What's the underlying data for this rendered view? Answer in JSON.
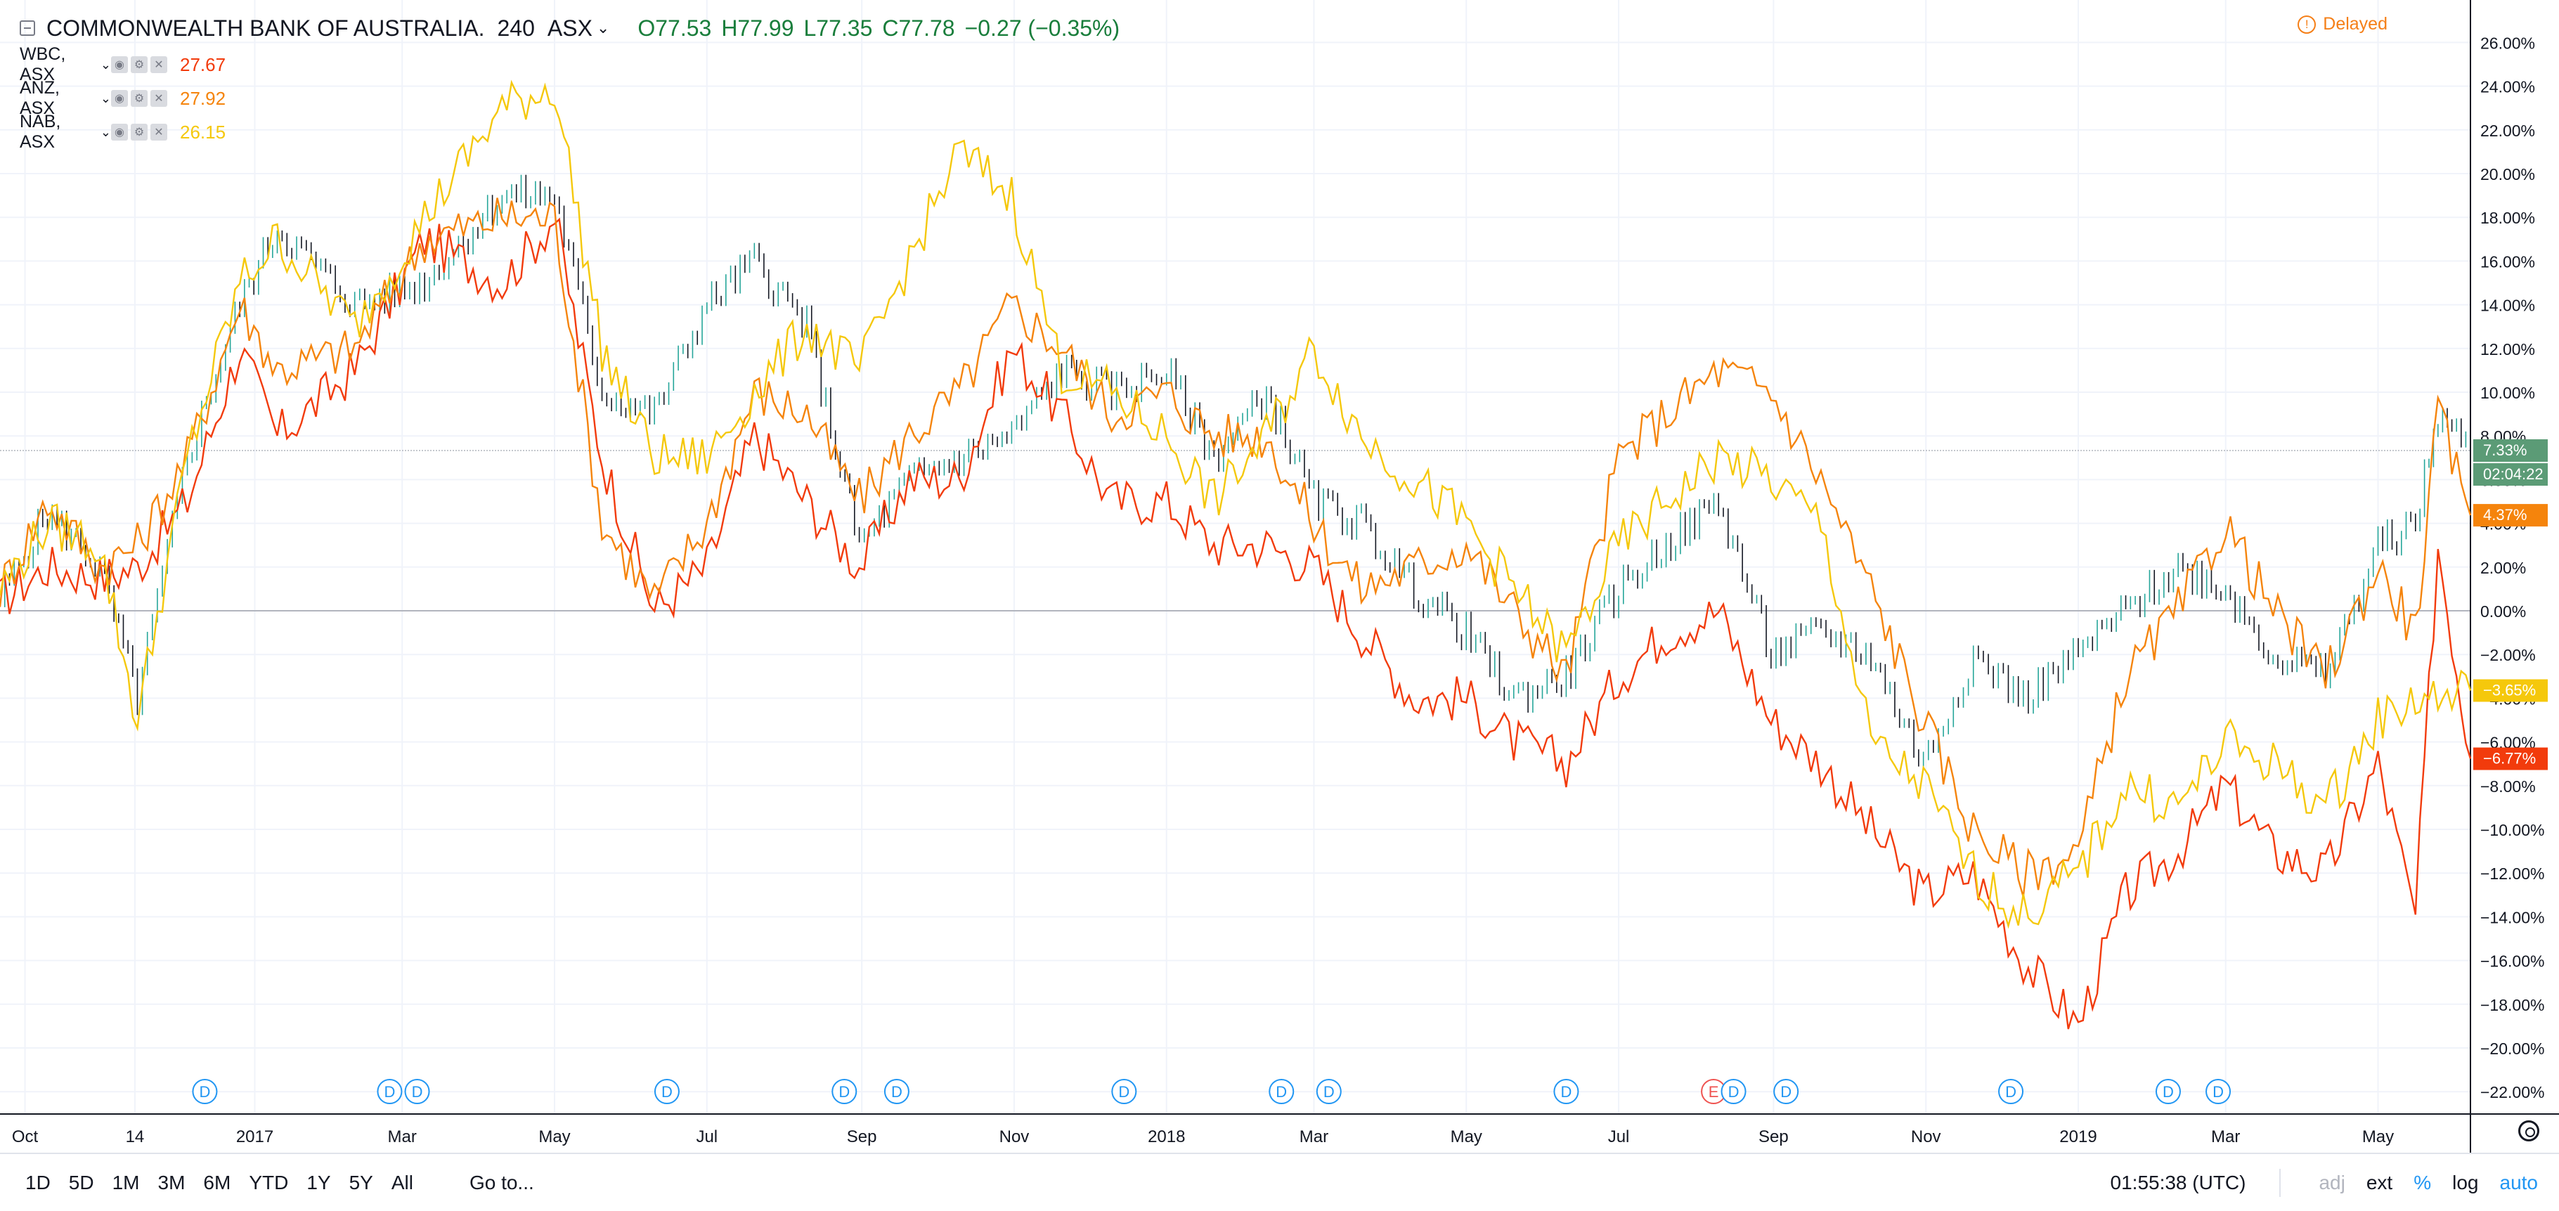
{
  "header": {
    "title": "COMMONWEALTH BANK OF AUSTRALIA.",
    "interval": "240",
    "exchange": "ASX",
    "open": "O77.53",
    "high": "H77.99",
    "low": "L77.35",
    "close": "C77.78",
    "change": "−0.27 (−0.35%)",
    "ohlc_color": "#1a7e3c"
  },
  "status": {
    "delayed": "Delayed",
    "delayed_color": "#f57f17"
  },
  "comparisons": [
    {
      "symbol": "WBC, ASX",
      "value": "27.67",
      "color": "#f23b0c"
    },
    {
      "symbol": "ANZ, ASX",
      "value": "27.92",
      "color": "#f5840c"
    },
    {
      "symbol": "NAB, ASX",
      "value": "26.15",
      "color": "#f5c80c"
    }
  ],
  "bottom": {
    "ranges": [
      "1D",
      "5D",
      "1M",
      "3M",
      "6M",
      "YTD",
      "1Y",
      "5Y",
      "All"
    ],
    "goto": "Go to...",
    "time": "01:55:38 (UTC)",
    "adj": "adj",
    "ext": "ext",
    "percent": "%",
    "log": "log",
    "auto": "auto"
  },
  "chart_data": {
    "type": "line",
    "ylim": [
      -23,
      27
    ],
    "y_unit": "%",
    "x_range": [
      "2016-09-21",
      "2019-06-07"
    ],
    "x_ticks": [
      {
        "date": "2016-10-01",
        "label": "Oct"
      },
      {
        "date": "2016-11-14",
        "label": "14"
      },
      {
        "date": "2017-01-01",
        "label": "2017"
      },
      {
        "date": "2017-03-01",
        "label": "Mar"
      },
      {
        "date": "2017-05-01",
        "label": "May"
      },
      {
        "date": "2017-07-01",
        "label": "Jul"
      },
      {
        "date": "2017-09-01",
        "label": "Sep"
      },
      {
        "date": "2017-11-01",
        "label": "Nov"
      },
      {
        "date": "2018-01-01",
        "label": "2018"
      },
      {
        "date": "2018-03-01",
        "label": "Mar"
      },
      {
        "date": "2018-05-01",
        "label": "May"
      },
      {
        "date": "2018-07-01",
        "label": "Jul"
      },
      {
        "date": "2018-09-01",
        "label": "Sep"
      },
      {
        "date": "2018-11-01",
        "label": "Nov"
      },
      {
        "date": "2019-01-01",
        "label": "2019"
      },
      {
        "date": "2019-03-01",
        "label": "Mar"
      },
      {
        "date": "2019-05-01",
        "label": "May"
      }
    ],
    "y_ticks": [
      26,
      24,
      22,
      20,
      18,
      16,
      14,
      12,
      10,
      8,
      6,
      4,
      2,
      0,
      -2,
      -4,
      -6,
      -8,
      -10,
      -12,
      -14,
      -16,
      -18,
      -20,
      -22
    ],
    "y_tick_labels": [
      "26.00%",
      "24.00%",
      "22.00%",
      "20.00%",
      "18.00%",
      "16.00%",
      "14.00%",
      "12.00%",
      "10.00%",
      "8.00%",
      "6.00%",
      "4.00%",
      "2.00%",
      "0.00%",
      "−2.00%",
      "−4.00%",
      "−6.00%",
      "−8.00%",
      "−10.00%",
      "−12.00%",
      "−14.00%",
      "−16.00%",
      "−18.00%",
      "−20.00%",
      "−22.00%"
    ],
    "grid": true,
    "main_series": {
      "symbol": "CBA",
      "style": "bars",
      "up_color": "#26a69a",
      "down_color": "#131722",
      "x": [
        "2016-09-21",
        "2016-10-10",
        "2016-10-31",
        "2016-11-15",
        "2016-12-05",
        "2016-12-26",
        "2017-01-10",
        "2017-02-10",
        "2017-03-10",
        "2017-04-10",
        "2017-05-01",
        "2017-05-20",
        "2017-06-10",
        "2017-07-01",
        "2017-07-20",
        "2017-08-10",
        "2017-08-31",
        "2017-09-20",
        "2017-10-10",
        "2017-10-31",
        "2017-11-20",
        "2017-12-10",
        "2018-01-01",
        "2018-01-20",
        "2018-02-10",
        "2018-03-01",
        "2018-03-20",
        "2018-04-10",
        "2018-05-01",
        "2018-05-20",
        "2018-06-10",
        "2018-07-01",
        "2018-07-20",
        "2018-08-10",
        "2018-08-31",
        "2018-09-20",
        "2018-10-10",
        "2018-10-31",
        "2018-11-20",
        "2018-12-10",
        "2019-01-01",
        "2019-01-20",
        "2019-02-10",
        "2019-03-01",
        "2019-03-20",
        "2019-04-10",
        "2019-05-01",
        "2019-05-16",
        "2019-05-25",
        "2019-06-07"
      ],
      "y": [
        0.5,
        4.5,
        2,
        -4,
        7,
        14,
        17.5,
        14,
        15,
        19,
        19,
        10,
        9,
        14,
        16,
        13,
        3,
        6,
        7,
        8,
        11,
        10,
        11,
        7,
        10,
        5,
        4,
        1,
        -1,
        -4,
        -3,
        1,
        3,
        5,
        -2,
        -1,
        -2,
        -7,
        -2,
        -4,
        -2,
        0,
        2,
        1,
        -2,
        -3,
        3,
        4,
        9,
        7.33
      ]
    },
    "series": [
      {
        "name": "WBC, ASX",
        "color": "#f23b0c",
        "x": [
          "2016-09-21",
          "2016-10-10",
          "2016-10-31",
          "2016-11-15",
          "2016-12-05",
          "2016-12-26",
          "2017-01-10",
          "2017-02-10",
          "2017-03-10",
          "2017-04-10",
          "2017-05-01",
          "2017-05-20",
          "2017-06-10",
          "2017-07-01",
          "2017-07-20",
          "2017-08-10",
          "2017-08-31",
          "2017-09-20",
          "2017-10-10",
          "2017-10-31",
          "2017-11-20",
          "2017-12-10",
          "2018-01-01",
          "2018-01-20",
          "2018-02-10",
          "2018-03-01",
          "2018-03-20",
          "2018-04-10",
          "2018-05-01",
          "2018-05-20",
          "2018-06-10",
          "2018-07-01",
          "2018-07-20",
          "2018-08-10",
          "2018-08-31",
          "2018-09-20",
          "2018-10-10",
          "2018-10-31",
          "2018-11-20",
          "2018-12-10",
          "2019-01-01",
          "2019-01-20",
          "2019-02-10",
          "2019-03-01",
          "2019-03-20",
          "2019-04-10",
          "2019-05-01",
          "2019-05-16",
          "2019-05-25",
          "2019-06-07"
        ],
        "y": [
          0.5,
          2,
          1.5,
          2,
          5,
          12,
          8,
          11,
          17,
          15,
          18,
          7,
          0,
          2,
          8,
          5,
          2,
          6,
          6,
          12,
          9,
          5,
          5,
          3,
          3,
          2,
          -1,
          -4,
          -4,
          -6,
          -7,
          -3,
          -1,
          0,
          -5,
          -7,
          -10,
          -13,
          -12,
          -16,
          -19,
          -13,
          -11,
          -8,
          -11,
          -12,
          -7,
          -14,
          3,
          -6.77
        ]
      },
      {
        "name": "ANZ, ASX",
        "color": "#f5840c",
        "x": [
          "2016-09-21",
          "2016-10-10",
          "2016-10-31",
          "2016-11-15",
          "2016-12-05",
          "2016-12-26",
          "2017-01-10",
          "2017-02-10",
          "2017-03-10",
          "2017-04-10",
          "2017-05-01",
          "2017-05-20",
          "2017-06-10",
          "2017-07-01",
          "2017-07-20",
          "2017-08-10",
          "2017-08-31",
          "2017-09-20",
          "2017-10-10",
          "2017-10-31",
          "2017-11-20",
          "2017-12-10",
          "2018-01-01",
          "2018-01-20",
          "2018-02-10",
          "2018-03-01",
          "2018-03-20",
          "2018-04-10",
          "2018-05-01",
          "2018-05-20",
          "2018-06-10",
          "2018-07-01",
          "2018-07-20",
          "2018-08-10",
          "2018-08-31",
          "2018-09-20",
          "2018-10-10",
          "2018-10-31",
          "2018-11-20",
          "2018-12-10",
          "2019-01-01",
          "2019-01-20",
          "2019-02-10",
          "2019-03-01",
          "2019-03-20",
          "2019-04-10",
          "2019-05-01",
          "2019-05-16",
          "2019-05-25",
          "2019-06-07"
        ],
        "y": [
          1,
          5,
          2,
          3,
          7,
          14,
          11,
          12,
          17,
          18,
          18,
          4,
          0.5,
          4,
          10,
          9,
          5,
          8,
          10,
          14,
          12,
          9,
          10,
          8,
          8,
          4,
          1,
          2,
          3,
          0,
          -3,
          7,
          9,
          11,
          10,
          6,
          1,
          -5,
          -10,
          -12,
          -11,
          -3,
          0,
          4,
          0,
          -3,
          2,
          -1,
          9,
          4.37
        ]
      },
      {
        "name": "NAB, ASX",
        "color": "#f5c80c",
        "x": [
          "2016-09-21",
          "2016-10-10",
          "2016-10-31",
          "2016-11-15",
          "2016-12-05",
          "2016-12-26",
          "2017-01-10",
          "2017-02-10",
          "2017-03-10",
          "2017-04-10",
          "2017-05-01",
          "2017-05-20",
          "2017-06-10",
          "2017-07-01",
          "2017-07-20",
          "2017-08-10",
          "2017-08-31",
          "2017-09-20",
          "2017-10-10",
          "2017-10-31",
          "2017-11-20",
          "2017-12-10",
          "2018-01-01",
          "2018-01-20",
          "2018-02-10",
          "2018-03-01",
          "2018-03-20",
          "2018-04-10",
          "2018-05-01",
          "2018-05-20",
          "2018-06-10",
          "2018-07-01",
          "2018-07-20",
          "2018-08-10",
          "2018-08-31",
          "2018-09-20",
          "2018-10-10",
          "2018-10-31",
          "2018-11-20",
          "2018-12-10",
          "2019-01-01",
          "2019-01-20",
          "2019-02-10",
          "2019-03-01",
          "2019-03-20",
          "2019-04-10",
          "2019-05-01",
          "2019-05-16",
          "2019-05-25",
          "2019-06-07"
        ],
        "y": [
          1,
          4,
          3,
          -5,
          7,
          15,
          17,
          13,
          18,
          23,
          24,
          12,
          7,
          7,
          10,
          13,
          11,
          16,
          21,
          19,
          11,
          10,
          8,
          5,
          8,
          12,
          8,
          6,
          4,
          1,
          -2,
          3,
          5,
          7,
          6,
          4,
          -6,
          -8,
          -12,
          -14,
          -12,
          -8,
          -9,
          -6,
          -7,
          -9,
          -5,
          -4,
          -4,
          -3.65
        ]
      }
    ],
    "last_value_labels": [
      {
        "text": "7.33%",
        "value": 7.33,
        "bg": "#5b9b76"
      },
      {
        "text": "02:04:22",
        "value": 7.33,
        "bg": "#5b9b76",
        "countdown": true
      },
      {
        "text": "4.37%",
        "value": 4.37,
        "bg": "#f5840c"
      },
      {
        "text": "−3.65%",
        "value": -3.65,
        "bg": "#f5c80c"
      },
      {
        "text": "−6.77%",
        "value": -6.77,
        "bg": "#f23b0c"
      }
    ],
    "event_markers": [
      {
        "date": "2016-12-12",
        "label": "D",
        "color": "#2196f3"
      },
      {
        "date": "2017-02-24",
        "label": "D",
        "color": "#2196f3"
      },
      {
        "date": "2017-03-07",
        "label": "D",
        "color": "#2196f3"
      },
      {
        "date": "2017-06-15",
        "label": "D",
        "color": "#2196f3"
      },
      {
        "date": "2017-08-25",
        "label": "D",
        "color": "#2196f3"
      },
      {
        "date": "2017-09-15",
        "label": "D",
        "color": "#2196f3"
      },
      {
        "date": "2017-12-15",
        "label": "D",
        "color": "#2196f3"
      },
      {
        "date": "2018-02-16",
        "label": "D",
        "color": "#2196f3"
      },
      {
        "date": "2018-03-07",
        "label": "D",
        "color": "#2196f3"
      },
      {
        "date": "2018-06-10",
        "label": "D",
        "color": "#2196f3"
      },
      {
        "date": "2018-08-08",
        "label": "E",
        "color": "#ef5350"
      },
      {
        "date": "2018-08-16",
        "label": "D",
        "color": "#2196f3"
      },
      {
        "date": "2018-09-06",
        "label": "D",
        "color": "#2196f3"
      },
      {
        "date": "2018-12-05",
        "label": "D",
        "color": "#2196f3"
      },
      {
        "date": "2019-02-06",
        "label": "D",
        "color": "#2196f3"
      },
      {
        "date": "2019-02-26",
        "label": "D",
        "color": "#2196f3"
      }
    ]
  }
}
